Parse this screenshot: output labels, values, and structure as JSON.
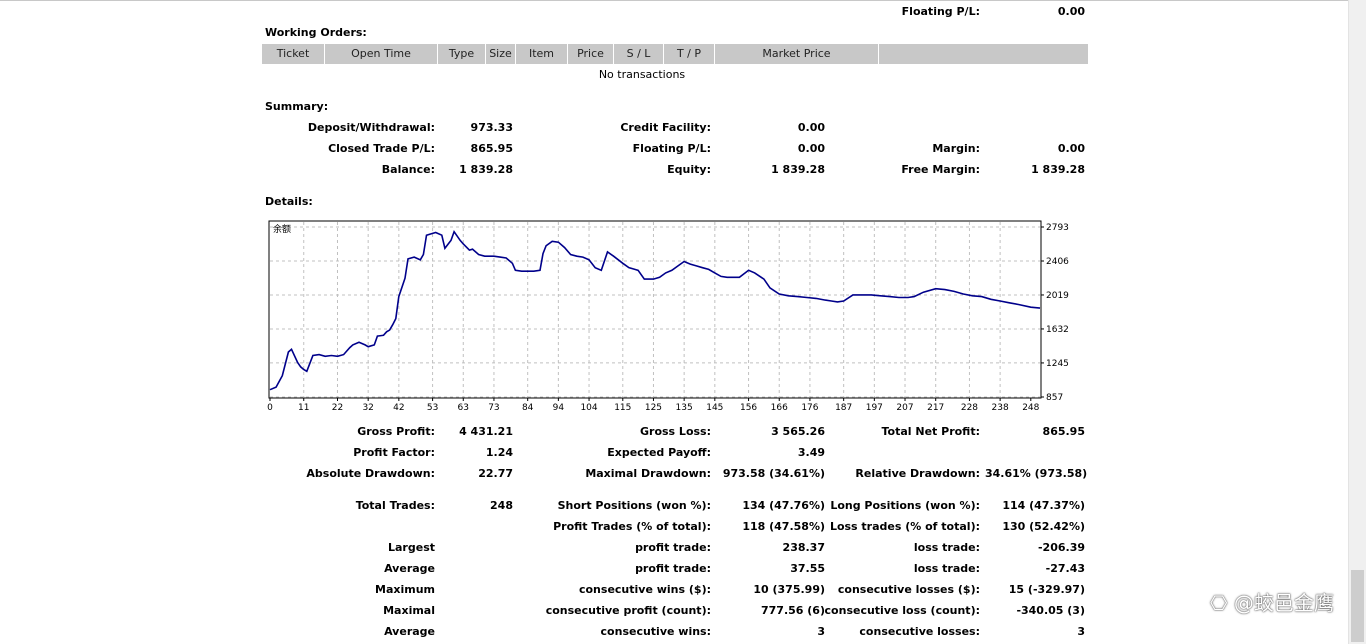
{
  "floating_pl_top": {
    "label": "Floating P/L:",
    "value": "0.00"
  },
  "working_orders": {
    "title": "Working Orders:",
    "columns": [
      "Ticket",
      "Open Time",
      "Type",
      "Size",
      "Item",
      "Price",
      "S / L",
      "T / P",
      "Market Price",
      ""
    ],
    "empty_text": "No transactions"
  },
  "summary": {
    "title": "Summary:",
    "deposit_label": "Deposit/Withdrawal:",
    "deposit_value": "973.33",
    "credit_label": "Credit Facility:",
    "credit_value": "0.00",
    "closed_label": "Closed Trade P/L:",
    "closed_value": "865.95",
    "floating_label": "Floating P/L:",
    "floating_value": "0.00",
    "margin_label": "Margin:",
    "margin_value": "0.00",
    "balance_label": "Balance:",
    "balance_value": "1 839.28",
    "equity_label": "Equity:",
    "equity_value": "1 839.28",
    "free_margin_label": "Free Margin:",
    "free_margin_value": "1 839.28"
  },
  "details": {
    "title": "Details:",
    "gross_profit_label": "Gross Profit:",
    "gross_profit_value": "4 431.21",
    "gross_loss_label": "Gross Loss:",
    "gross_loss_value": "3 565.26",
    "total_net_label": "Total Net Profit:",
    "total_net_value": "865.95",
    "profit_factor_label": "Profit Factor:",
    "profit_factor_value": "1.24",
    "expected_payoff_label": "Expected Payoff:",
    "expected_payoff_value": "3.49",
    "abs_dd_label": "Absolute Drawdown:",
    "abs_dd_value": "22.77",
    "max_dd_label": "Maximal Drawdown:",
    "max_dd_value": "973.58 (34.61%)",
    "rel_dd_label": "Relative Drawdown:",
    "rel_dd_value": "34.61% (973.58)",
    "total_trades_label": "Total Trades:",
    "total_trades_value": "248",
    "short_label": "Short Positions (won %):",
    "short_value": "134 (47.76%)",
    "long_label": "Long Positions (won %):",
    "long_value": "114 (47.37%)",
    "profit_trades_label": "Profit Trades (% of total):",
    "profit_trades_value": "118 (47.58%)",
    "loss_trades_label": "Loss trades (% of total):",
    "loss_trades_value": "130 (52.42%)",
    "largest_label": "Largest",
    "largest_profit_label": "profit trade:",
    "largest_profit_value": "238.37",
    "largest_loss_label": "loss trade:",
    "largest_loss_value": "-206.39",
    "average_label": "Average",
    "average_profit_label": "profit trade:",
    "average_profit_value": "37.55",
    "average_loss_label": "loss trade:",
    "average_loss_value": "-27.43",
    "maximum_label": "Maximum",
    "max_wins_label": "consecutive wins ($):",
    "max_wins_value": "10 (375.99)",
    "max_losses_label": "consecutive losses ($):",
    "max_losses_value": "15 (-329.97)",
    "maximal_label": "Maximal",
    "maximal_profit_label": "consecutive profit (count):",
    "maximal_profit_value": "777.56 (6)",
    "maximal_loss_label": "consecutive loss (count):",
    "maximal_loss_value": "-340.05 (3)",
    "average2_label": "Average",
    "avg_cons_wins_label": "consecutive wins:",
    "avg_cons_wins_value": "3",
    "avg_cons_losses_label": "consecutive losses:",
    "avg_cons_losses_value": "3"
  },
  "chart_data": {
    "type": "line",
    "title": "余额",
    "color": "#00008b",
    "x_ticks": [
      0,
      11,
      22,
      32,
      42,
      53,
      63,
      73,
      84,
      94,
      104,
      115,
      125,
      135,
      145,
      156,
      166,
      176,
      187,
      197,
      207,
      217,
      228,
      238,
      248
    ],
    "y_ticks": [
      857,
      1245,
      1632,
      2019,
      2406,
      2793
    ],
    "xlim": [
      0,
      251
    ],
    "ylim": [
      857,
      2850
    ],
    "grid": true,
    "x": [
      0,
      2,
      4,
      6,
      7,
      9,
      10,
      11,
      12,
      14,
      16,
      18,
      20,
      22,
      24,
      26,
      27,
      29,
      31,
      32,
      34,
      35,
      37,
      38,
      39,
      40,
      41,
      42,
      44,
      45,
      47,
      49,
      50,
      51,
      53,
      54,
      56,
      57,
      59,
      60,
      62,
      63,
      65,
      66,
      68,
      70,
      73,
      75,
      77,
      79,
      80,
      82,
      84,
      86,
      88,
      89,
      90,
      92,
      94,
      96,
      98,
      100,
      102,
      104,
      106,
      108,
      110,
      112,
      115,
      117,
      120,
      122,
      125,
      127,
      129,
      131,
      133,
      135,
      137,
      139,
      141,
      143,
      145,
      147,
      149,
      151,
      153,
      156,
      158,
      161,
      163,
      166,
      169,
      172,
      175,
      178,
      181,
      183,
      185,
      187,
      190,
      193,
      196,
      199,
      202,
      205,
      208,
      210,
      213,
      217,
      220,
      223,
      226,
      229,
      232,
      235,
      238,
      241,
      244,
      248,
      251
    ],
    "y": [
      940,
      970,
      1100,
      1370,
      1400,
      1250,
      1200,
      1170,
      1150,
      1330,
      1340,
      1320,
      1330,
      1320,
      1340,
      1420,
      1450,
      1480,
      1450,
      1430,
      1450,
      1550,
      1560,
      1600,
      1620,
      1680,
      1750,
      2000,
      2210,
      2430,
      2450,
      2420,
      2480,
      2700,
      2720,
      2730,
      2700,
      2550,
      2640,
      2740,
      2640,
      2600,
      2530,
      2540,
      2480,
      2460,
      2460,
      2450,
      2440,
      2380,
      2300,
      2290,
      2290,
      2290,
      2300,
      2490,
      2580,
      2630,
      2620,
      2560,
      2480,
      2460,
      2450,
      2420,
      2330,
      2300,
      2510,
      2460,
      2380,
      2330,
      2300,
      2200,
      2200,
      2220,
      2270,
      2300,
      2350,
      2400,
      2370,
      2350,
      2330,
      2310,
      2270,
      2230,
      2220,
      2220,
      2220,
      2300,
      2270,
      2200,
      2100,
      2030,
      2010,
      2000,
      1990,
      1980,
      1960,
      1950,
      1940,
      1950,
      2020,
      2020,
      2020,
      2010,
      2000,
      1990,
      1990,
      2000,
      2050,
      2090,
      2080,
      2060,
      2030,
      2010,
      2000,
      1970,
      1950,
      1930,
      1910,
      1880,
      1870
    ]
  },
  "watermark": "⎔ @蛟邑金鹰"
}
